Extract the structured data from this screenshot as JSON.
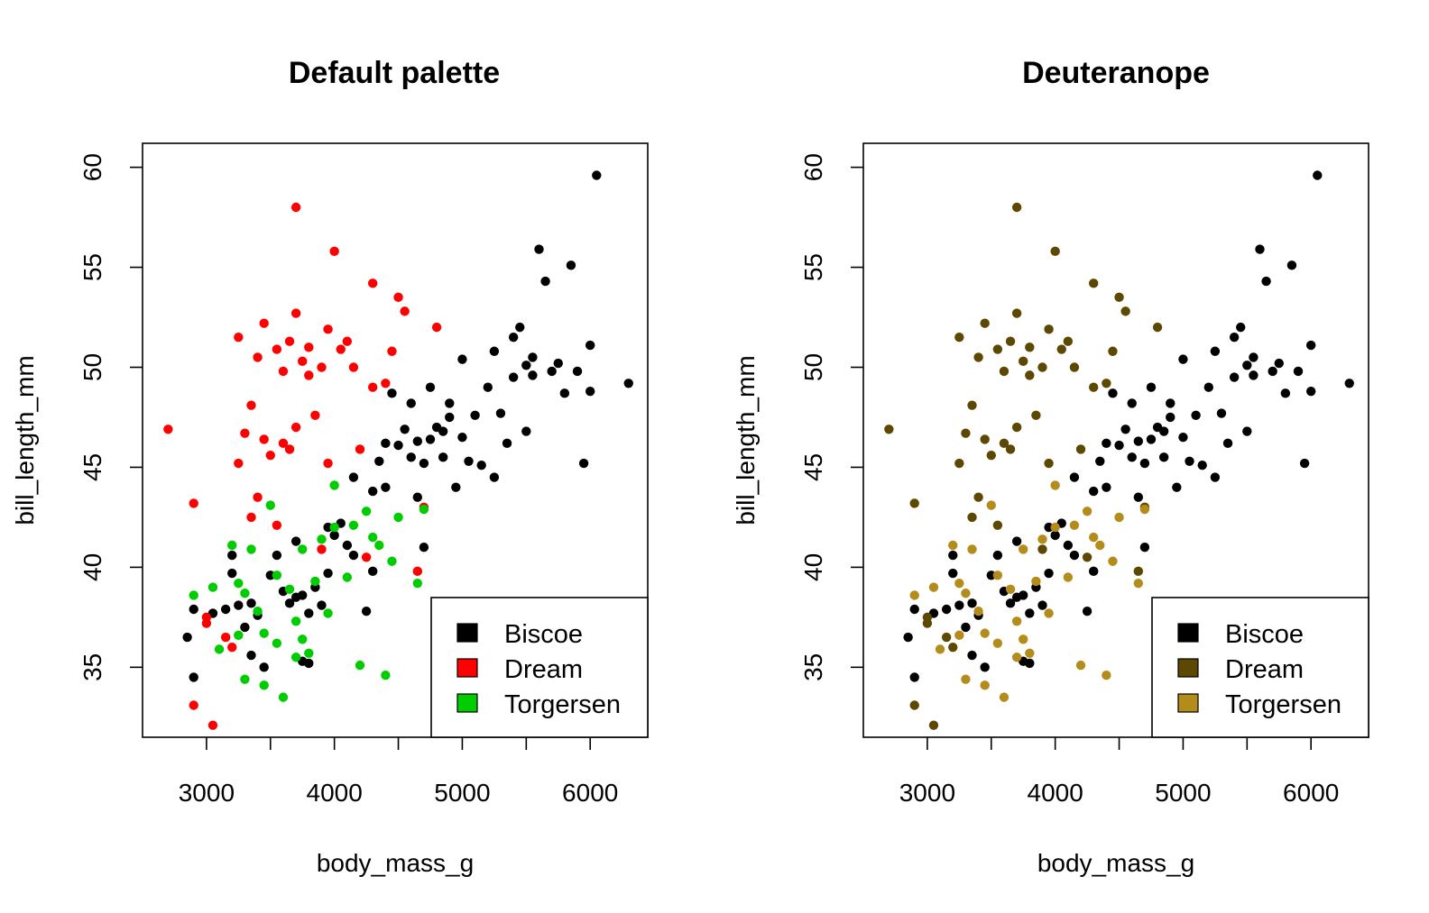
{
  "chart_data": [
    {
      "type": "scatter",
      "title": "Default palette",
      "xlabel": "body_mass_g",
      "ylabel": "bill_length_mm",
      "xlim": [
        2500,
        6450
      ],
      "ylim": [
        31.5,
        61.2
      ],
      "xticks": [
        3000,
        4000,
        5000,
        6000
      ],
      "yticks": [
        35,
        40,
        45,
        50,
        55,
        60
      ],
      "grid": false,
      "legend_position": "bottom-right",
      "series": [
        {
          "name": "Biscoe",
          "color": "#000000",
          "points": [
            [
              2850,
              36.5
            ],
            [
              2900,
              34.5
            ],
            [
              2900,
              37.9
            ],
            [
              3050,
              37.7
            ],
            [
              3150,
              37.9
            ],
            [
              3200,
              40.6
            ],
            [
              3200,
              39.7
            ],
            [
              3250,
              38.1
            ],
            [
              3300,
              37.0
            ],
            [
              3350,
              35.6
            ],
            [
              3350,
              38.2
            ],
            [
              3400,
              37.6
            ],
            [
              3450,
              35.0
            ],
            [
              3500,
              39.6
            ],
            [
              3550,
              40.6
            ],
            [
              3600,
              38.8
            ],
            [
              3650,
              38.2
            ],
            [
              3700,
              38.5
            ],
            [
              3700,
              41.3
            ],
            [
              3750,
              35.3
            ],
            [
              3750,
              38.6
            ],
            [
              3800,
              35.2
            ],
            [
              3800,
              37.7
            ],
            [
              3850,
              39.0
            ],
            [
              3900,
              38.1
            ],
            [
              3950,
              39.7
            ],
            [
              3950,
              42.0
            ],
            [
              4000,
              41.6
            ],
            [
              4050,
              42.2
            ],
            [
              4100,
              41.1
            ],
            [
              4150,
              40.6
            ],
            [
              4150,
              44.5
            ],
            [
              4250,
              37.8
            ],
            [
              4300,
              39.8
            ],
            [
              4300,
              43.8
            ],
            [
              4350,
              45.3
            ],
            [
              4400,
              46.2
            ],
            [
              4400,
              44.0
            ],
            [
              4450,
              48.7
            ],
            [
              4500,
              46.1
            ],
            [
              4550,
              46.9
            ],
            [
              4600,
              45.5
            ],
            [
              4600,
              48.2
            ],
            [
              4650,
              46.3
            ],
            [
              4650,
              43.5
            ],
            [
              4700,
              45.2
            ],
            [
              4700,
              41.0
            ],
            [
              4750,
              46.4
            ],
            [
              4750,
              49.0
            ],
            [
              4800,
              47.0
            ],
            [
              4850,
              45.5
            ],
            [
              4850,
              46.8
            ],
            [
              4900,
              47.5
            ],
            [
              4900,
              48.2
            ],
            [
              4950,
              44.0
            ],
            [
              5000,
              46.5
            ],
            [
              5000,
              50.4
            ],
            [
              5050,
              45.3
            ],
            [
              5100,
              47.6
            ],
            [
              5150,
              45.1
            ],
            [
              5200,
              49.0
            ],
            [
              5250,
              44.5
            ],
            [
              5250,
              50.8
            ],
            [
              5300,
              47.7
            ],
            [
              5350,
              46.2
            ],
            [
              5400,
              49.5
            ],
            [
              5400,
              51.5
            ],
            [
              5450,
              52.0
            ],
            [
              5500,
              50.1
            ],
            [
              5500,
              46.8
            ],
            [
              5550,
              49.6
            ],
            [
              5550,
              50.5
            ],
            [
              5600,
              55.9
            ],
            [
              5650,
              54.3
            ],
            [
              5700,
              49.8
            ],
            [
              5750,
              50.2
            ],
            [
              5800,
              48.7
            ],
            [
              5850,
              55.1
            ],
            [
              5900,
              49.8
            ],
            [
              5950,
              45.2
            ],
            [
              6000,
              51.1
            ],
            [
              6000,
              48.8
            ],
            [
              6050,
              59.6
            ],
            [
              6300,
              49.2
            ]
          ]
        },
        {
          "name": "Dream",
          "color": "#ff0000",
          "points": [
            [
              2700,
              46.9
            ],
            [
              2900,
              33.1
            ],
            [
              2900,
              43.2
            ],
            [
              3000,
              37.2
            ],
            [
              3050,
              32.1
            ],
            [
              3150,
              36.5
            ],
            [
              3200,
              36.0
            ],
            [
              3250,
              45.2
            ],
            [
              3250,
              51.5
            ],
            [
              3300,
              46.7
            ],
            [
              3350,
              48.1
            ],
            [
              3350,
              42.5
            ],
            [
              3400,
              50.5
            ],
            [
              3400,
              43.5
            ],
            [
              3450,
              52.2
            ],
            [
              3450,
              46.4
            ],
            [
              3500,
              45.6
            ],
            [
              3550,
              50.9
            ],
            [
              3550,
              42.1
            ],
            [
              3600,
              49.8
            ],
            [
              3600,
              46.2
            ],
            [
              3650,
              51.3
            ],
            [
              3650,
              45.9
            ],
            [
              3700,
              58.0
            ],
            [
              3700,
              52.7
            ],
            [
              3700,
              47.0
            ],
            [
              3750,
              50.3
            ],
            [
              3800,
              49.6
            ],
            [
              3800,
              51.0
            ],
            [
              3850,
              47.6
            ],
            [
              3900,
              40.9
            ],
            [
              3900,
              50.0
            ],
            [
              3950,
              45.2
            ],
            [
              3950,
              51.9
            ],
            [
              4000,
              55.8
            ],
            [
              4050,
              50.9
            ],
            [
              4100,
              51.3
            ],
            [
              4150,
              50.0
            ],
            [
              4200,
              45.9
            ],
            [
              4250,
              40.5
            ],
            [
              4300,
              54.2
            ],
            [
              4300,
              49.0
            ],
            [
              4400,
              49.2
            ],
            [
              4450,
              50.8
            ],
            [
              4500,
              53.5
            ],
            [
              4550,
              52.8
            ],
            [
              4650,
              39.8
            ],
            [
              4700,
              43.0
            ],
            [
              4800,
              52.0
            ],
            [
              3000,
              37.5
            ]
          ]
        },
        {
          "name": "Torgersen",
          "color": "#00cd00",
          "points": [
            [
              2900,
              38.6
            ],
            [
              3050,
              39.0
            ],
            [
              3100,
              35.9
            ],
            [
              3200,
              41.1
            ],
            [
              3250,
              36.6
            ],
            [
              3250,
              39.2
            ],
            [
              3300,
              38.7
            ],
            [
              3300,
              34.4
            ],
            [
              3350,
              40.9
            ],
            [
              3400,
              37.8
            ],
            [
              3450,
              34.1
            ],
            [
              3450,
              36.7
            ],
            [
              3500,
              43.1
            ],
            [
              3550,
              39.6
            ],
            [
              3550,
              36.2
            ],
            [
              3600,
              33.5
            ],
            [
              3650,
              38.9
            ],
            [
              3700,
              37.3
            ],
            [
              3700,
              35.5
            ],
            [
              3750,
              40.9
            ],
            [
              3750,
              36.4
            ],
            [
              3800,
              35.7
            ],
            [
              3850,
              39.3
            ],
            [
              3900,
              41.4
            ],
            [
              3950,
              37.7
            ],
            [
              4000,
              44.1
            ],
            [
              4000,
              42.0
            ],
            [
              4100,
              39.5
            ],
            [
              4150,
              42.1
            ],
            [
              4200,
              35.1
            ],
            [
              4250,
              42.8
            ],
            [
              4300,
              41.5
            ],
            [
              4350,
              41.1
            ],
            [
              4400,
              34.6
            ],
            [
              4450,
              40.3
            ],
            [
              4500,
              42.5
            ],
            [
              4650,
              39.2
            ],
            [
              4700,
              42.9
            ]
          ]
        }
      ]
    },
    {
      "type": "scatter",
      "title": "Deuteranope",
      "xlabel": "body_mass_g",
      "ylabel": "bill_length_mm",
      "xlim": [
        2500,
        6450
      ],
      "ylim": [
        31.5,
        61.2
      ],
      "xticks": [
        3000,
        4000,
        5000,
        6000
      ],
      "yticks": [
        35,
        40,
        45,
        50,
        55,
        60
      ],
      "grid": false,
      "legend_position": "bottom-right",
      "same_points_as": 0,
      "series_colors": [
        "#000000",
        "#5c4800",
        "#b38c1b"
      ],
      "series_names": [
        "Biscoe",
        "Dream",
        "Torgersen"
      ]
    }
  ]
}
